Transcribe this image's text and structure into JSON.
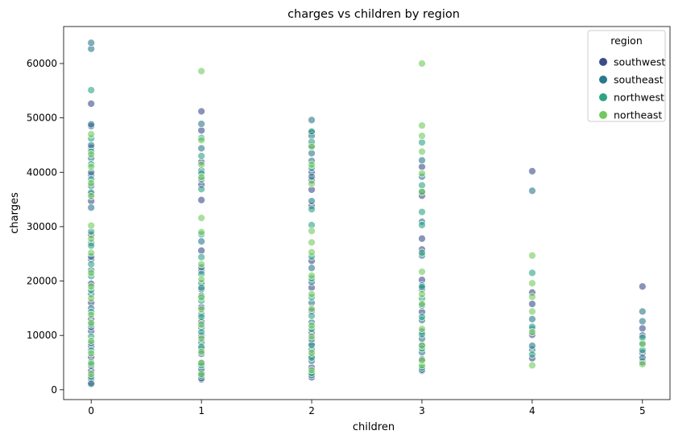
{
  "chart_data": {
    "type": "scatter",
    "title": "charges vs children by region",
    "xlabel": "children",
    "ylabel": "charges",
    "xlim": [
      -0.25,
      5.25
    ],
    "ylim": [
      -1800,
      66800
    ],
    "x_ticks": [
      0,
      1,
      2,
      3,
      4,
      5
    ],
    "x_tick_labels": [
      "0",
      "1",
      "2",
      "3",
      "4",
      "5"
    ],
    "y_ticks": [
      0,
      10000,
      20000,
      30000,
      40000,
      50000,
      60000
    ],
    "y_tick_labels": [
      "0",
      "10000",
      "20000",
      "30000",
      "40000",
      "50000",
      "60000"
    ],
    "grid": false,
    "legend": {
      "title": "region",
      "placement": "top-right"
    },
    "series": [
      {
        "name": "southwest",
        "color": "#3b4c8a",
        "points": [
          [
            0,
            1300
          ],
          [
            0,
            2000
          ],
          [
            0,
            3500
          ],
          [
            0,
            6000
          ],
          [
            0,
            8000
          ],
          [
            0,
            10800
          ],
          [
            0,
            13000
          ],
          [
            0,
            16000
          ],
          [
            0,
            19500
          ],
          [
            0,
            24000
          ],
          [
            0,
            28500
          ],
          [
            0,
            34700
          ],
          [
            0,
            36000
          ],
          [
            0,
            39500
          ],
          [
            0,
            44500
          ],
          [
            0,
            48500
          ],
          [
            0,
            52600
          ],
          [
            1,
            1900
          ],
          [
            1,
            3200
          ],
          [
            1,
            5000
          ],
          [
            1,
            7500
          ],
          [
            1,
            9900
          ],
          [
            1,
            12500
          ],
          [
            1,
            15200
          ],
          [
            1,
            18500
          ],
          [
            1,
            21900
          ],
          [
            1,
            25600
          ],
          [
            1,
            34900
          ],
          [
            1,
            37700
          ],
          [
            1,
            41900
          ],
          [
            1,
            47700
          ],
          [
            1,
            51200
          ],
          [
            2,
            2300
          ],
          [
            2,
            4100
          ],
          [
            2,
            6200
          ],
          [
            2,
            8500
          ],
          [
            2,
            10500
          ],
          [
            2,
            14500
          ],
          [
            2,
            18800
          ],
          [
            2,
            23700
          ],
          [
            2,
            33800
          ],
          [
            2,
            36800
          ],
          [
            2,
            38500
          ],
          [
            2,
            40000
          ],
          [
            2,
            44900
          ],
          [
            2,
            47300
          ],
          [
            3,
            3500
          ],
          [
            3,
            5600
          ],
          [
            3,
            8300
          ],
          [
            3,
            10700
          ],
          [
            3,
            14300
          ],
          [
            3,
            18500
          ],
          [
            3,
            20200
          ],
          [
            3,
            25800
          ],
          [
            3,
            27800
          ],
          [
            3,
            35700
          ],
          [
            3,
            41000
          ],
          [
            4,
            5800
          ],
          [
            4,
            10100
          ],
          [
            4,
            15800
          ],
          [
            4,
            17900
          ],
          [
            4,
            40200
          ],
          [
            5,
            5100
          ],
          [
            5,
            6800
          ],
          [
            5,
            10000
          ],
          [
            5,
            11300
          ],
          [
            5,
            19000
          ]
        ]
      },
      {
        "name": "southeast",
        "color": "#2b788a",
        "points": [
          [
            0,
            1100
          ],
          [
            0,
            4400
          ],
          [
            0,
            8600
          ],
          [
            0,
            11500
          ],
          [
            0,
            15000
          ],
          [
            0,
            17600
          ],
          [
            0,
            22000
          ],
          [
            0,
            24500
          ],
          [
            0,
            27000
          ],
          [
            0,
            33500
          ],
          [
            0,
            37500
          ],
          [
            0,
            40000
          ],
          [
            0,
            42600
          ],
          [
            0,
            45000
          ],
          [
            0,
            48800
          ],
          [
            0,
            62700
          ],
          [
            0,
            63800
          ],
          [
            1,
            2100
          ],
          [
            1,
            3800
          ],
          [
            1,
            6600
          ],
          [
            1,
            8700
          ],
          [
            1,
            11400
          ],
          [
            1,
            13900
          ],
          [
            1,
            17300
          ],
          [
            1,
            19600
          ],
          [
            1,
            22500
          ],
          [
            1,
            27300
          ],
          [
            1,
            38700
          ],
          [
            1,
            40300
          ],
          [
            1,
            44400
          ],
          [
            1,
            48900
          ],
          [
            2,
            2700
          ],
          [
            2,
            5300
          ],
          [
            2,
            7400
          ],
          [
            2,
            9300
          ],
          [
            2,
            12400
          ],
          [
            2,
            16000
          ],
          [
            2,
            19800
          ],
          [
            2,
            22400
          ],
          [
            2,
            34700
          ],
          [
            2,
            39200
          ],
          [
            2,
            42100
          ],
          [
            2,
            43500
          ],
          [
            2,
            46700
          ],
          [
            2,
            49600
          ],
          [
            3,
            3700
          ],
          [
            3,
            6900
          ],
          [
            3,
            9400
          ],
          [
            3,
            12800
          ],
          [
            3,
            15500
          ],
          [
            3,
            19200
          ],
          [
            3,
            24700
          ],
          [
            3,
            30900
          ],
          [
            3,
            36400
          ],
          [
            3,
            39200
          ],
          [
            3,
            42200
          ],
          [
            4,
            7400
          ],
          [
            4,
            8100
          ],
          [
            4,
            11200
          ],
          [
            4,
            13000
          ],
          [
            4,
            36600
          ],
          [
            5,
            5900
          ],
          [
            5,
            8600
          ],
          [
            5,
            12600
          ],
          [
            5,
            14400
          ]
        ]
      },
      {
        "name": "northwest",
        "color": "#2da486",
        "points": [
          [
            0,
            2400
          ],
          [
            0,
            5100
          ],
          [
            0,
            7200
          ],
          [
            0,
            9800
          ],
          [
            0,
            12000
          ],
          [
            0,
            14300
          ],
          [
            0,
            18300
          ],
          [
            0,
            20900
          ],
          [
            0,
            23100
          ],
          [
            0,
            26500
          ],
          [
            0,
            29100
          ],
          [
            0,
            36300
          ],
          [
            0,
            38700
          ],
          [
            0,
            41500
          ],
          [
            0,
            43800
          ],
          [
            0,
            46200
          ],
          [
            0,
            55100
          ],
          [
            1,
            2600
          ],
          [
            1,
            4500
          ],
          [
            1,
            7900
          ],
          [
            1,
            10600
          ],
          [
            1,
            13400
          ],
          [
            1,
            16400
          ],
          [
            1,
            18800
          ],
          [
            1,
            21300
          ],
          [
            1,
            24400
          ],
          [
            1,
            28600
          ],
          [
            1,
            36900
          ],
          [
            1,
            39800
          ],
          [
            1,
            43000
          ],
          [
            1,
            46300
          ],
          [
            2,
            3100
          ],
          [
            2,
            5900
          ],
          [
            2,
            8200
          ],
          [
            2,
            11200
          ],
          [
            2,
            13600
          ],
          [
            2,
            17000
          ],
          [
            2,
            20500
          ],
          [
            2,
            24500
          ],
          [
            2,
            30300
          ],
          [
            2,
            33200
          ],
          [
            2,
            40800
          ],
          [
            2,
            45600
          ],
          [
            2,
            47500
          ],
          [
            3,
            4100
          ],
          [
            3,
            7600
          ],
          [
            3,
            10200
          ],
          [
            3,
            13400
          ],
          [
            3,
            16800
          ],
          [
            3,
            18900
          ],
          [
            3,
            25200
          ],
          [
            3,
            30300
          ],
          [
            3,
            32700
          ],
          [
            3,
            37600
          ],
          [
            3,
            45500
          ],
          [
            4,
            6500
          ],
          [
            4,
            11600
          ],
          [
            4,
            21500
          ],
          [
            5,
            7300
          ],
          [
            5,
            9600
          ]
        ]
      },
      {
        "name": "northeast",
        "color": "#72c95e",
        "points": [
          [
            0,
            2900
          ],
          [
            0,
            4800
          ],
          [
            0,
            6700
          ],
          [
            0,
            9000
          ],
          [
            0,
            12300
          ],
          [
            0,
            13800
          ],
          [
            0,
            16800
          ],
          [
            0,
            19000
          ],
          [
            0,
            21500
          ],
          [
            0,
            25200
          ],
          [
            0,
            27800
          ],
          [
            0,
            30200
          ],
          [
            0,
            35600
          ],
          [
            0,
            38000
          ],
          [
            0,
            41000
          ],
          [
            0,
            43300
          ],
          [
            0,
            47000
          ],
          [
            1,
            2900
          ],
          [
            1,
            4900
          ],
          [
            1,
            7000
          ],
          [
            1,
            9400
          ],
          [
            1,
            12000
          ],
          [
            1,
            14800
          ],
          [
            1,
            17000
          ],
          [
            1,
            20300
          ],
          [
            1,
            23100
          ],
          [
            1,
            29000
          ],
          [
            1,
            31600
          ],
          [
            1,
            39100
          ],
          [
            1,
            41400
          ],
          [
            1,
            45900
          ],
          [
            1,
            58600
          ],
          [
            2,
            3600
          ],
          [
            2,
            6800
          ],
          [
            2,
            9800
          ],
          [
            2,
            11800
          ],
          [
            2,
            14900
          ],
          [
            2,
            17600
          ],
          [
            2,
            21000
          ],
          [
            2,
            25300
          ],
          [
            2,
            27100
          ],
          [
            2,
            29200
          ],
          [
            2,
            37900
          ],
          [
            2,
            41400
          ],
          [
            2,
            44700
          ],
          [
            3,
            4500
          ],
          [
            3,
            5400
          ],
          [
            3,
            8100
          ],
          [
            3,
            11200
          ],
          [
            3,
            15800
          ],
          [
            3,
            17600
          ],
          [
            3,
            21700
          ],
          [
            3,
            36400
          ],
          [
            3,
            39800
          ],
          [
            3,
            43800
          ],
          [
            3,
            46700
          ],
          [
            3,
            48600
          ],
          [
            3,
            60000
          ],
          [
            4,
            4500
          ],
          [
            4,
            10600
          ],
          [
            4,
            14400
          ],
          [
            4,
            17100
          ],
          [
            4,
            19600
          ],
          [
            4,
            24700
          ],
          [
            5,
            4700
          ],
          [
            5,
            8400
          ]
        ]
      }
    ]
  }
}
